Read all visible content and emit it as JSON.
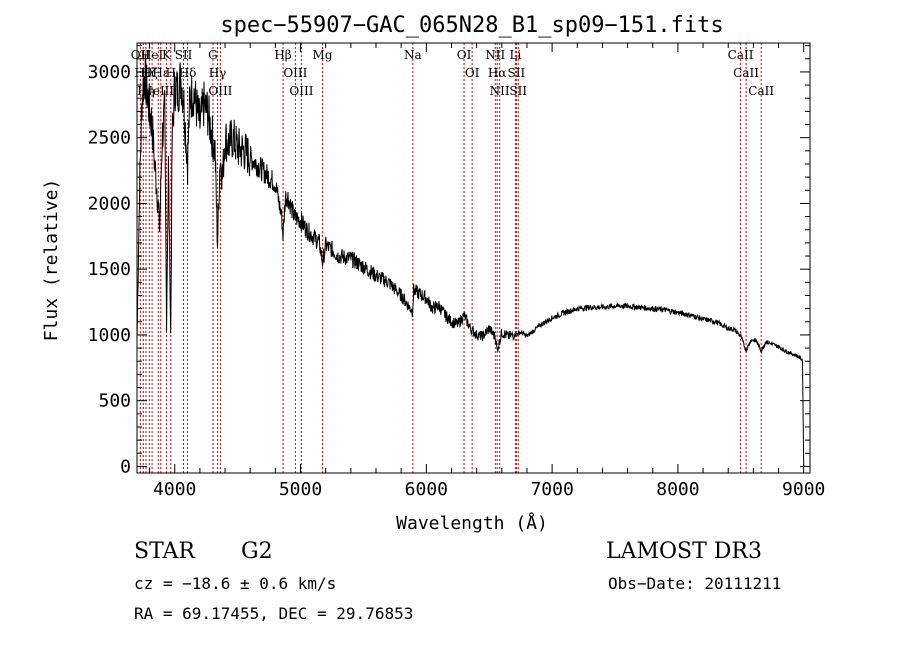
{
  "chart_data": {
    "type": "line",
    "title": "spec−55907−GAC_065N28_B1_sp09−151.fits",
    "xlabel": "Wavelength (Å)",
    "ylabel": "Flux (relative)",
    "xlim": [
      3700,
      9050
    ],
    "ylim": [
      -50,
      3220
    ],
    "x_ticks": [
      4000,
      5000,
      6000,
      7000,
      8000,
      9000
    ],
    "x_tick_labels": [
      "4000",
      "5000",
      "6000",
      "7000",
      "8000",
      "9000"
    ],
    "y_ticks": [
      0,
      500,
      1000,
      1500,
      2000,
      2500,
      3000
    ],
    "y_tick_labels": [
      "0",
      "500",
      "1000",
      "1500",
      "2000",
      "2500",
      "3000"
    ],
    "grid": false,
    "series": [
      {
        "name": "flux",
        "x": [
          3700,
          3720,
          3740,
          3760,
          3780,
          3800,
          3820,
          3840,
          3860,
          3880,
          3900,
          3920,
          3935,
          3950,
          3968,
          3980,
          4000,
          4020,
          4050,
          4070,
          4102,
          4120,
          4150,
          4180,
          4200,
          4230,
          4260,
          4290,
          4320,
          4340,
          4360,
          4380,
          4400,
          4430,
          4460,
          4500,
          4550,
          4600,
          4650,
          4700,
          4750,
          4800,
          4850,
          4861,
          4880,
          4900,
          4950,
          5000,
          5050,
          5100,
          5150,
          5175,
          5200,
          5250,
          5300,
          5400,
          5500,
          5600,
          5700,
          5800,
          5890,
          5900,
          6000,
          6050,
          6100,
          6150,
          6200,
          6250,
          6300,
          6350,
          6400,
          6450,
          6500,
          6550,
          6563,
          6600,
          6650,
          6700,
          6750,
          6800,
          6850,
          6900,
          6950,
          7000,
          7100,
          7200,
          7300,
          7400,
          7500,
          7600,
          7700,
          7800,
          7900,
          8000,
          8100,
          8200,
          8300,
          8400,
          8450,
          8500,
          8542,
          8580,
          8620,
          8662,
          8700,
          8750,
          8800,
          8850,
          8900,
          8950,
          8990,
          9000
        ],
        "y": [
          950,
          2100,
          2800,
          3000,
          2850,
          2700,
          2600,
          2300,
          2100,
          1800,
          2500,
          2700,
          1100,
          2300,
          1000,
          2500,
          2900,
          2850,
          2950,
          2800,
          2300,
          2800,
          2850,
          2700,
          2600,
          2750,
          2700,
          2550,
          2400,
          1700,
          2350,
          2200,
          2500,
          2450,
          2500,
          2420,
          2400,
          2350,
          2300,
          2250,
          2200,
          2150,
          1900,
          1750,
          2050,
          2050,
          1900,
          1870,
          1800,
          1750,
          1700,
          1550,
          1680,
          1650,
          1600,
          1580,
          1520,
          1450,
          1400,
          1300,
          1180,
          1340,
          1280,
          1200,
          1220,
          1150,
          1100,
          1080,
          1150,
          1050,
          1000,
          990,
          1050,
          980,
          880,
          1020,
          990,
          1000,
          1020,
          990,
          1030,
          1070,
          1100,
          1130,
          1170,
          1200,
          1210,
          1210,
          1220,
          1220,
          1210,
          1200,
          1190,
          1170,
          1150,
          1120,
          1100,
          1050,
          1040,
          990,
          880,
          960,
          960,
          880,
          950,
          930,
          910,
          880,
          860,
          840,
          810,
          0
        ]
      }
    ],
    "line_markers": [
      {
        "wl": 3727,
        "label": "OII"
      },
      {
        "wl": 3750,
        "label": "Hθ"
      },
      {
        "wl": 3771,
        "label": "Hη"
      },
      {
        "wl": 3798,
        "label": "Hζ"
      },
      {
        "wl": 3820,
        "label": "HeI"
      },
      {
        "wl": 3869,
        "label": "NeIII"
      },
      {
        "wl": 3889,
        "label": "Hε"
      },
      {
        "wl": 3934,
        "label": "K"
      },
      {
        "wl": 3969,
        "label": "H"
      },
      {
        "wl": 4070,
        "label": "SII"
      },
      {
        "wl": 4102,
        "label": "Hδ"
      },
      {
        "wl": 4304,
        "label": "G"
      },
      {
        "wl": 4340,
        "label": "Hγ"
      },
      {
        "wl": 4363,
        "label": "OIII"
      },
      {
        "wl": 4861,
        "label": "Hβ"
      },
      {
        "wl": 4959,
        "label": "OIII"
      },
      {
        "wl": 5007,
        "label": "OIII"
      },
      {
        "wl": 5175,
        "label": "Mg"
      },
      {
        "wl": 5893,
        "label": "Na"
      },
      {
        "wl": 6300,
        "label": "OI"
      },
      {
        "wl": 6364,
        "label": "OI"
      },
      {
        "wl": 6548,
        "label": "NII"
      },
      {
        "wl": 6563,
        "label": "Hα"
      },
      {
        "wl": 6583,
        "label": "NII"
      },
      {
        "wl": 6708,
        "label": "Li"
      },
      {
        "wl": 6716,
        "label": "SII"
      },
      {
        "wl": 6731,
        "label": "SII"
      },
      {
        "wl": 8498,
        "label": "CaII"
      },
      {
        "wl": 8542,
        "label": "CaII"
      },
      {
        "wl": 8662,
        "label": "CaII"
      }
    ],
    "marker_color": "#cc0000"
  },
  "info": {
    "object_class": "STAR",
    "subclass": "G2",
    "survey": "LAMOST DR3",
    "redshift_line": "cz = −18.6 ± 0.6 km/s",
    "obs_date_line": "Obs−Date: 20111211",
    "coords_line": "RA =  69.17455, DEC =  29.76853"
  }
}
